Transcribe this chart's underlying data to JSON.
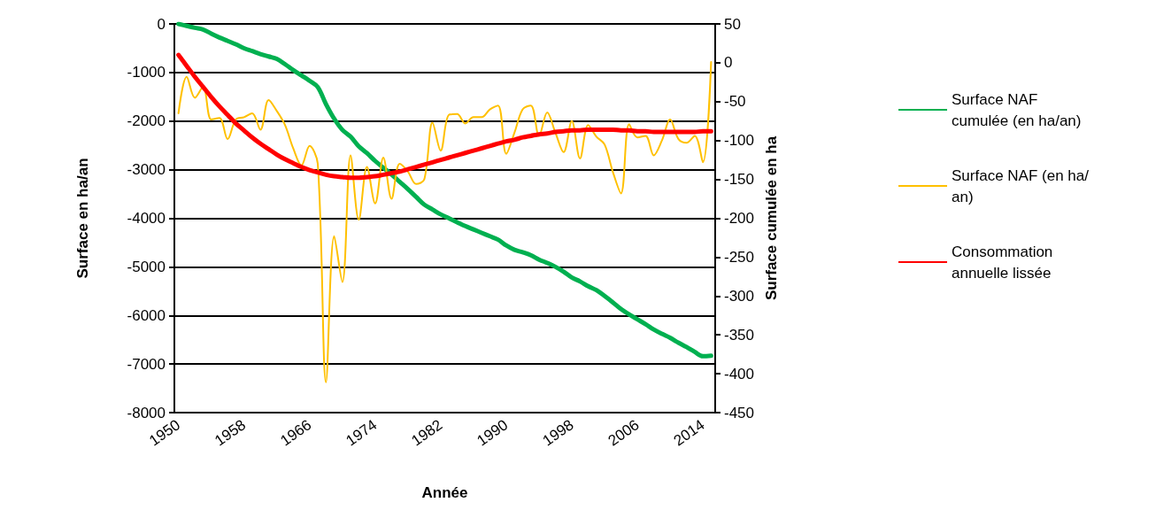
{
  "chart_data": {
    "type": "line",
    "xlabel": "Année",
    "ylabel": "Surface en ha/an",
    "y2label": "Surface cumulée en ha",
    "categories": [
      "1950",
      null,
      null,
      null,
      null,
      null,
      null,
      null,
      "1958",
      null,
      null,
      null,
      null,
      null,
      null,
      null,
      "1966",
      null,
      null,
      null,
      null,
      null,
      null,
      null,
      "1974",
      null,
      null,
      null,
      null,
      null,
      null,
      null,
      "1982",
      null,
      null,
      null,
      null,
      null,
      null,
      null,
      "1990",
      null,
      null,
      null,
      null,
      null,
      null,
      null,
      "1998",
      null,
      null,
      null,
      null,
      null,
      null,
      null,
      "2006",
      null,
      null,
      null,
      null,
      null,
      null,
      null,
      "2014",
      null
    ],
    "series": [
      {
        "name": "Surface NAF cumulée (en ha/an)",
        "color": "#00b050",
        "values": [
          0,
          -40,
          -80,
          -115,
          -200,
          -280,
          -350,
          -420,
          -500,
          -560,
          -620,
          -670,
          -720,
          -830,
          -950,
          -1060,
          -1170,
          -1300,
          -1650,
          -1950,
          -2180,
          -2320,
          -2520,
          -2660,
          -2820,
          -2960,
          -3100,
          -3250,
          -3400,
          -3560,
          -3720,
          -3820,
          -3920,
          -4000,
          -4080,
          -4160,
          -4230,
          -4300,
          -4370,
          -4440,
          -4560,
          -4650,
          -4700,
          -4760,
          -4850,
          -4920,
          -5000,
          -5100,
          -5220,
          -5300,
          -5400,
          -5480,
          -5600,
          -5730,
          -5870,
          -5980,
          -6080,
          -6180,
          -6290,
          -6380,
          -6460,
          -6560,
          -6650,
          -6750,
          -6840,
          -6830
        ]
      },
      {
        "name": "Surface NAF (en ha/an)",
        "color": "#ffc000",
        "axis": "y2",
        "values": [
          -65,
          -18,
          -45,
          -31,
          -73,
          -71,
          -98,
          -73,
          -70,
          -65,
          -86,
          -48,
          -62,
          -80,
          -110,
          -132,
          -107,
          -130,
          -411,
          -223,
          -282,
          -119,
          -202,
          -134,
          -181,
          -122,
          -175,
          -130,
          -140,
          -156,
          -150,
          -77,
          -113,
          -67,
          -66,
          -78,
          -70,
          -70,
          -60,
          -55,
          -117,
          -90,
          -60,
          -55,
          -94,
          -64,
          -90,
          -115,
          -75,
          -123,
          -80,
          -95,
          -105,
          -140,
          -168,
          -79,
          -96,
          -94,
          -119,
          -100,
          -73,
          -98,
          -103,
          -94,
          -128,
          1
        ]
      },
      {
        "name": "Consommation annuelle lissée",
        "color": "#ff0000",
        "axis": "y2",
        "values": [
          10,
          -4,
          -18,
          -31,
          -44,
          -56,
          -67,
          -78,
          -87,
          -96,
          -104,
          -111,
          -118,
          -124,
          -129,
          -134,
          -138,
          -141,
          -144,
          -146,
          -147,
          -148,
          -148,
          -147,
          -146,
          -144,
          -142,
          -140,
          -137,
          -134,
          -131,
          -128,
          -125,
          -122,
          -119,
          -116,
          -113,
          -110,
          -107,
          -104,
          -101,
          -99,
          -96,
          -94,
          -92,
          -91,
          -89,
          -88,
          -87,
          -87,
          -86,
          -86,
          -86,
          -86,
          -87,
          -87,
          -88,
          -88,
          -89,
          -89,
          -89,
          -89,
          -89,
          -89,
          -88,
          -88
        ]
      }
    ],
    "ylim": [
      -8000,
      0
    ],
    "yticks": [
      -8000,
      -7000,
      -6000,
      -5000,
      -4000,
      -3000,
      -2000,
      -1000,
      0
    ],
    "y2lim": [
      -450,
      50
    ],
    "y2ticks": [
      -450,
      -400,
      -350,
      -300,
      -250,
      -200,
      -150,
      -100,
      -50,
      0,
      50
    ],
    "grid": "y",
    "legend": "right",
    "marker": "none"
  }
}
